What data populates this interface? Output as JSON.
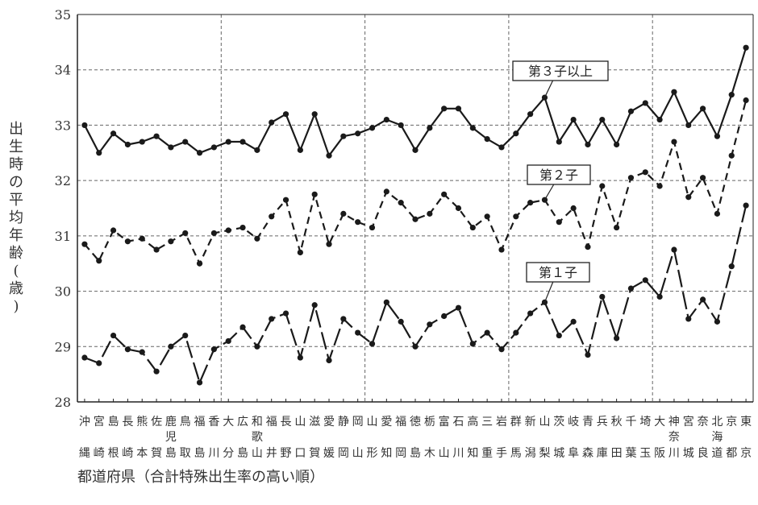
{
  "chart_data": {
    "type": "line",
    "ylabel": "出生時の平均年齢(歳)",
    "xlabel": "都道府県（合計特殊出生率の高い順）",
    "ylim": [
      28,
      35
    ],
    "yticks": [
      28,
      29,
      30,
      31,
      32,
      33,
      34,
      35
    ],
    "grid": true,
    "categories": [
      [
        "沖",
        "縄"
      ],
      [
        "宮",
        "崎"
      ],
      [
        "島",
        "根"
      ],
      [
        "長",
        "崎"
      ],
      [
        "熊",
        "本"
      ],
      [
        "佐",
        "賀"
      ],
      [
        "鹿",
        "児",
        "島"
      ],
      [
        "鳥",
        "取"
      ],
      [
        "福",
        "島"
      ],
      [
        "香",
        "川"
      ],
      [
        "大",
        "分"
      ],
      [
        "広",
        "島"
      ],
      [
        "和",
        "歌",
        "山"
      ],
      [
        "福",
        "井"
      ],
      [
        "長",
        "野"
      ],
      [
        "山",
        "口"
      ],
      [
        "滋",
        "賀"
      ],
      [
        "愛",
        "媛"
      ],
      [
        "静",
        "岡"
      ],
      [
        "岡",
        "山"
      ],
      [
        "山",
        "形"
      ],
      [
        "愛",
        "知"
      ],
      [
        "福",
        "岡"
      ],
      [
        "徳",
        "島"
      ],
      [
        "栃",
        "木"
      ],
      [
        "富",
        "山"
      ],
      [
        "石",
        "川"
      ],
      [
        "高",
        "知"
      ],
      [
        "三",
        "重"
      ],
      [
        "岩",
        "手"
      ],
      [
        "群",
        "馬"
      ],
      [
        "新",
        "潟"
      ],
      [
        "山",
        "梨"
      ],
      [
        "茨",
        "城"
      ],
      [
        "岐",
        "阜"
      ],
      [
        "青",
        "森"
      ],
      [
        "兵",
        "庫"
      ],
      [
        "秋",
        "田"
      ],
      [
        "千",
        "葉"
      ],
      [
        "埼",
        "玉"
      ],
      [
        "大",
        "阪"
      ],
      [
        "神",
        "奈",
        "川"
      ],
      [
        "宮",
        "城"
      ],
      [
        "奈",
        "良"
      ],
      [
        "北",
        "海",
        "道"
      ],
      [
        "京",
        "都"
      ],
      [
        "東",
        "京"
      ]
    ],
    "series": [
      {
        "name": "第３子以上",
        "dash": "solid",
        "values": [
          33.0,
          32.5,
          32.85,
          32.65,
          32.7,
          32.8,
          32.6,
          32.7,
          32.5,
          32.6,
          32.7,
          32.7,
          32.55,
          33.05,
          33.2,
          32.55,
          33.2,
          32.45,
          32.8,
          32.85,
          32.95,
          33.1,
          33.0,
          32.55,
          32.95,
          33.3,
          33.3,
          32.95,
          32.75,
          32.6,
          32.85,
          33.2,
          33.5,
          32.7,
          33.1,
          32.65,
          33.1,
          32.65,
          33.25,
          33.4,
          33.1,
          33.6,
          33.0,
          33.3,
          32.8,
          33.55,
          34.4
        ]
      },
      {
        "name": "第２子",
        "dash": "dashed",
        "values": [
          30.85,
          30.55,
          31.1,
          30.9,
          30.95,
          30.75,
          30.9,
          31.05,
          30.5,
          31.05,
          31.1,
          31.15,
          30.95,
          31.35,
          31.65,
          30.7,
          31.75,
          30.85,
          31.4,
          31.25,
          31.15,
          31.8,
          31.6,
          31.3,
          31.4,
          31.75,
          31.5,
          31.15,
          31.35,
          30.75,
          31.35,
          31.6,
          31.65,
          31.25,
          31.5,
          30.8,
          31.9,
          31.15,
          32.05,
          32.15,
          31.9,
          32.7,
          31.7,
          32.05,
          31.4,
          32.45,
          33.45
        ]
      },
      {
        "name": "第１子",
        "dash": "longdash",
        "values": [
          28.8,
          28.7,
          29.2,
          28.95,
          28.9,
          28.55,
          29.0,
          29.2,
          28.35,
          28.95,
          29.1,
          29.35,
          29.0,
          29.5,
          29.6,
          28.8,
          29.75,
          28.75,
          29.5,
          29.25,
          29.05,
          29.8,
          29.45,
          29.0,
          29.4,
          29.55,
          29.7,
          29.05,
          29.25,
          28.95,
          29.25,
          29.6,
          29.8,
          29.2,
          29.45,
          28.85,
          29.9,
          29.15,
          30.05,
          30.2,
          29.9,
          30.75,
          29.5,
          29.85,
          29.45,
          30.45,
          31.55
        ]
      }
    ]
  }
}
